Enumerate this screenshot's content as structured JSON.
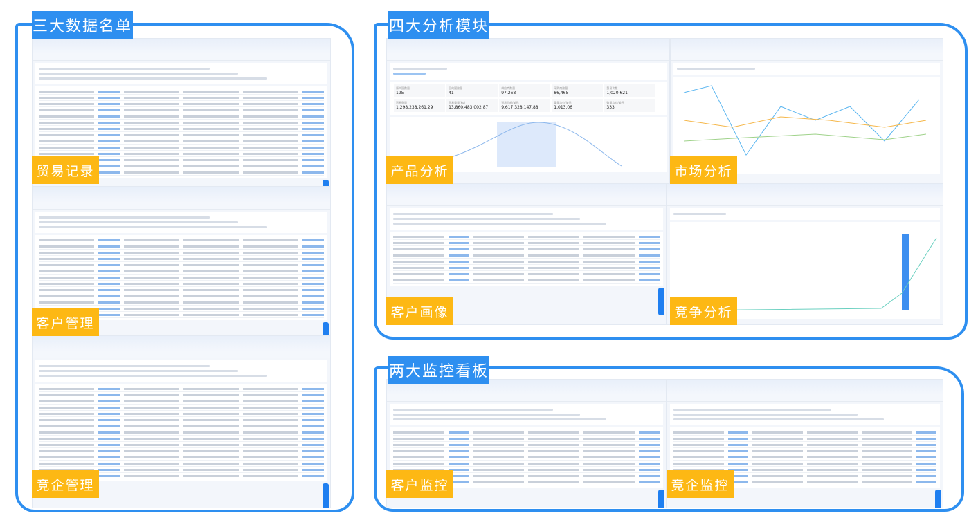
{
  "sections": {
    "data_lists": {
      "title": "三大数据名单",
      "labels": [
        "贸易记录",
        "客户管理",
        "竞企管理"
      ]
    },
    "analysis": {
      "title": "四大分析模块",
      "labels": [
        "产品分析",
        "市场分析",
        "客户画像",
        "竞争分析"
      ]
    },
    "monitor": {
      "title": "两大监控看板",
      "labels": [
        "客户监控",
        "竞企监控"
      ]
    }
  },
  "product_overview": {
    "stats": [
      {
        "label": "原产国数量",
        "value": "195"
      },
      {
        "label": "目的国数量",
        "value": "41"
      },
      {
        "label": "供应商数量",
        "value": "97,268"
      },
      {
        "label": "采购商数量",
        "value": "86,465"
      },
      {
        "label": "贸易次数",
        "value": "1,020,621"
      },
      {
        "label": "贸易数量",
        "value": "1,298,238,261.29"
      },
      {
        "label": "贸易重量(kg)",
        "value": "13,860,483,002.87"
      },
      {
        "label": "贸易总额/美元",
        "value": "9,617,328,147.88"
      },
      {
        "label": "重量均价/美元",
        "value": "1,013.06"
      },
      {
        "label": "数量均价/美元",
        "value": "333"
      }
    ]
  },
  "colors": {
    "brand_blue": "#2e8ff0",
    "label_orange": "#fdb814"
  }
}
